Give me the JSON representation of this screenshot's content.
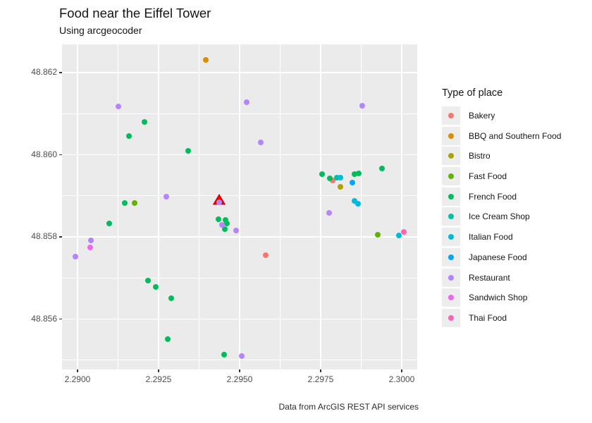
{
  "title": "Food near the Eiffel Tower",
  "subtitle": "Using arcgeocoder",
  "caption": "Data from ArcGIS REST API services",
  "legend": {
    "title": "Type of place"
  },
  "chart_data": {
    "type": "scatter",
    "title": "Food near the Eiffel Tower",
    "subtitle": "Using arcgeocoder",
    "caption": "Data from ArcGIS REST API services",
    "xlabel": "",
    "ylabel": "",
    "grid": true,
    "legend_position": "right",
    "xlim": [
      2.289522,
      2.300478
    ],
    "ylim": [
      48.854773,
      48.862687
    ],
    "x_ticks": [
      2.29,
      2.2925,
      2.295,
      2.2975,
      2.3
    ],
    "x_tick_labels": [
      "2.2900",
      "2.2925",
      "2.2950",
      "2.2975",
      "2.3000"
    ],
    "x_minor": [
      2.29125,
      2.29375,
      2.29625,
      2.29875
    ],
    "y_ticks": [
      48.856,
      48.858,
      48.86,
      48.862
    ],
    "y_tick_labels": [
      "48.856",
      "48.858",
      "48.860",
      "48.862"
    ],
    "y_minor": [
      48.855,
      48.857,
      48.859,
      48.861
    ],
    "annotation": {
      "name": "eiffel-tower-marker",
      "shape": "triangle",
      "x": 2.29437,
      "y": 48.85891,
      "fill": "#FF0000",
      "stroke": "#C00000"
    },
    "series": [
      {
        "name": "Bakery",
        "color": "#F8766D",
        "points": [
          [
            2.29787,
            48.85937
          ],
          [
            2.2958,
            48.85755
          ]
        ]
      },
      {
        "name": "BBQ and Southern Food",
        "color": "#DB8E00",
        "points": [
          [
            2.29396,
            48.86231
          ]
        ]
      },
      {
        "name": "Bistro",
        "color": "#AEA200",
        "points": [
          [
            2.29811,
            48.85922
          ]
        ]
      },
      {
        "name": "Fast Food",
        "color": "#64B200",
        "points": [
          [
            2.29176,
            48.85882
          ],
          [
            2.29926,
            48.85805
          ]
        ]
      },
      {
        "name": "French Food",
        "color": "#00BD5C",
        "points": [
          [
            2.29207,
            48.8608
          ],
          [
            2.29159,
            48.86045
          ],
          [
            2.29341,
            48.86009
          ],
          [
            2.29754,
            48.85953
          ],
          [
            2.29854,
            48.85953
          ],
          [
            2.29867,
            48.85955
          ],
          [
            2.29939,
            48.85967
          ],
          [
            2.29778,
            48.85942
          ],
          [
            2.29146,
            48.85882
          ],
          [
            2.29098,
            48.85833
          ],
          [
            2.29435,
            48.85843
          ],
          [
            2.29457,
            48.85841
          ],
          [
            2.29461,
            48.85833
          ],
          [
            2.29454,
            48.85819
          ],
          [
            2.29217,
            48.85694
          ],
          [
            2.29241,
            48.85678
          ],
          [
            2.29289,
            48.85651
          ],
          [
            2.29278,
            48.85551
          ],
          [
            2.29452,
            48.85513
          ]
        ]
      },
      {
        "name": "Ice Cream Shop",
        "color": "#00C1A7",
        "points": [
          [
            2.298,
            48.85944
          ]
        ]
      },
      {
        "name": "Italian Food",
        "color": "#00BADE",
        "points": [
          [
            2.29811,
            48.85944
          ],
          [
            2.29854,
            48.85888
          ],
          [
            2.29865,
            48.85881
          ],
          [
            2.29991,
            48.85803
          ]
        ]
      },
      {
        "name": "Japanese Food",
        "color": "#00A6FF",
        "points": [
          [
            2.29848,
            48.85932
          ]
        ]
      },
      {
        "name": "Restaurant",
        "color": "#B385FF",
        "points": [
          [
            2.29126,
            48.86118
          ],
          [
            2.29522,
            48.86128
          ],
          [
            2.29878,
            48.86119
          ],
          [
            2.29565,
            48.8603
          ],
          [
            2.29274,
            48.85898
          ],
          [
            2.29437,
            48.85884
          ],
          [
            2.29776,
            48.85858
          ],
          [
            2.29446,
            48.85829
          ],
          [
            2.29489,
            48.85815
          ],
          [
            2.29041,
            48.85791
          ],
          [
            2.28993,
            48.85752
          ],
          [
            2.29507,
            48.8551
          ]
        ]
      },
      {
        "name": "Sandwich Shop",
        "color": "#EF67EB",
        "points": [
          [
            2.29039,
            48.85774
          ]
        ]
      },
      {
        "name": "Thai Food",
        "color": "#FF63B6",
        "points": [
          [
            2.30007,
            48.85812
          ]
        ]
      }
    ]
  }
}
